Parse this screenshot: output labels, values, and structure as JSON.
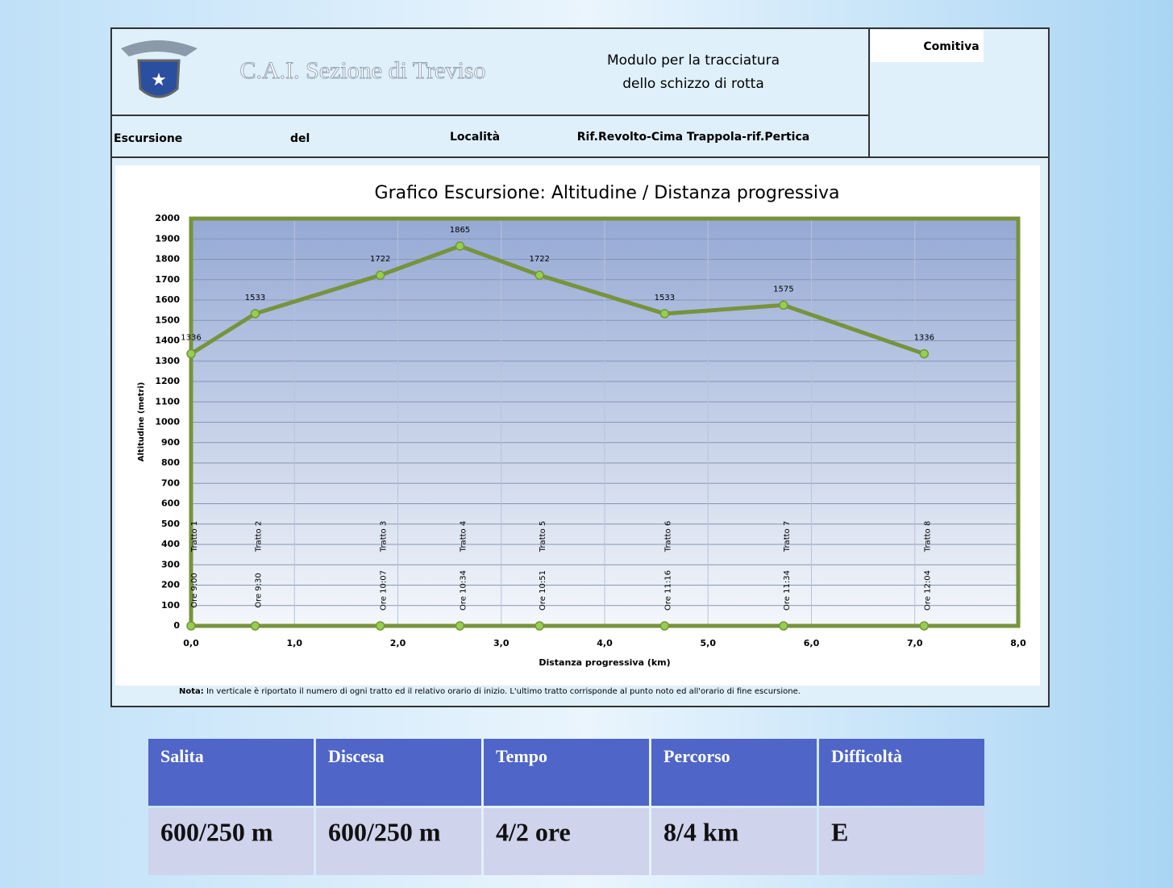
{
  "header": {
    "organization": "C.A.I. Sezione di Treviso",
    "form_title": [
      "Modulo per la tracciatura",
      "dello schizzo di rotta"
    ],
    "comitiva": "Comitiva",
    "escursione": "Escursione",
    "del": "del",
    "localita": "Località",
    "localita_value": "Rif.Revolto-Cima Trappola-rif.Pertica"
  },
  "chart_data": {
    "type": "line",
    "title": "Grafico Escursione:  Altitudine / Distanza progressiva",
    "x_label": "Distanza progressiva (km)",
    "y_label": "Altitudine (metri)",
    "x": [
      0,
      0.62,
      1.83,
      2.6,
      3.37,
      4.58,
      5.73,
      7.09
    ],
    "series": [
      {
        "color": "#77933c",
        "values": [
          1336,
          1533,
          1722,
          1865,
          1722,
          1533,
          1575,
          1336
        ]
      },
      {
        "color": "#77933c",
        "values": [
          0,
          0,
          0,
          0,
          0,
          0,
          0,
          0
        ]
      }
    ],
    "point_labels": [
      "Tratto 1",
      "Tratto 2",
      "Tratto 3",
      "Tratto 4",
      "Tratto 5",
      "Tratto 6",
      "Tratto 7",
      "Tratto 8"
    ],
    "time_labels": [
      "Ore 9:00",
      "Ore 9:30",
      "Ore 10:07",
      "Ore 10:34",
      "Ore 10:51",
      "Ore 11:16",
      "Ore 11:34",
      "Ore 12:04"
    ],
    "xlim": [
      0,
      8
    ],
    "xticks": [
      {
        "value": 0,
        "label": "0,0"
      },
      {
        "value": 1,
        "label": "1,0"
      },
      {
        "value": 2,
        "label": "2,0"
      },
      {
        "value": 3,
        "label": "3,0"
      },
      {
        "value": 4,
        "label": "4,0"
      },
      {
        "value": 5,
        "label": "5,0"
      },
      {
        "value": 6,
        "label": "6,0"
      },
      {
        "value": 7,
        "label": "7,0"
      },
      {
        "value": 8,
        "label": "8,0"
      }
    ],
    "ylim": [
      0,
      2000
    ],
    "yticks": [
      0,
      100,
      200,
      300,
      400,
      500,
      600,
      700,
      800,
      900,
      1000,
      1100,
      1200,
      1300,
      1400,
      1500,
      1600,
      1700,
      1800,
      1900,
      2000
    ],
    "grid": true,
    "note_label": "Nota:",
    "note": " In verticale è riportato il numero di ogni tratto ed il relativo orario di inizio. L'ultimo tratto corrisponde al punto noto ed all'orario di fine escursione."
  },
  "table": {
    "header": [
      "Salita",
      "Discesa",
      "Tempo",
      "Percorso",
      "Difficoltà"
    ],
    "rows": [
      [
        "600/250 m",
        "600/250 m",
        "4/2 ore",
        "8/4 km",
        "E"
      ]
    ]
  }
}
